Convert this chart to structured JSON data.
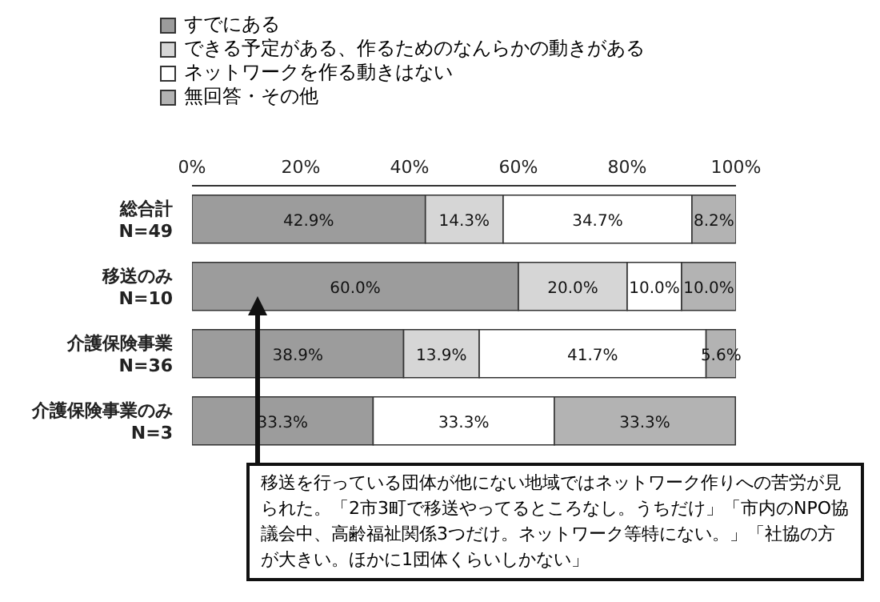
{
  "chart_data": {
    "type": "bar",
    "orientation": "horizontal",
    "stacked": true,
    "categories": [
      "総合計\nN=49",
      "移送のみ\nN=10",
      "介護保険事業\nN=36",
      "介護保険事業のみ\nN=3"
    ],
    "series": [
      {
        "name": "すでにある",
        "color": "#9c9c9c",
        "values": [
          42.9,
          60.0,
          38.9,
          33.3
        ],
        "value_labels": [
          "42.9%",
          "60.0%",
          "38.9%",
          "33.3%"
        ]
      },
      {
        "name": "できる予定がある、作るためのなんらかの動きがある",
        "color": "#d6d6d6",
        "values": [
          14.3,
          20.0,
          13.9,
          0
        ],
        "value_labels": [
          "14.3%",
          "20.0%",
          "13.9%",
          null
        ]
      },
      {
        "name": "ネットワークを作る動きはない",
        "color": "#ffffff",
        "values": [
          34.7,
          10.0,
          41.7,
          33.3
        ],
        "value_labels": [
          "34.7%",
          "10.0%",
          "41.7%",
          "33.3%"
        ]
      },
      {
        "name": "無回答・その他",
        "color": "#b3b3b3",
        "values": [
          8.2,
          10.0,
          5.6,
          33.3
        ],
        "value_labels": [
          "8.2%",
          "10.0%",
          "5.6%",
          "33.3%"
        ]
      }
    ],
    "xlim": [
      0,
      100
    ],
    "xticks": [
      {
        "value": 0,
        "label": "0%"
      },
      {
        "value": 20,
        "label": "20%"
      },
      {
        "value": 40,
        "label": "40%"
      },
      {
        "value": 60,
        "label": "60%"
      },
      {
        "value": 80,
        "label": "80%"
      },
      {
        "value": 100,
        "label": "100%"
      }
    ],
    "legend": "top left",
    "annotations": [
      {
        "text": "移送を行っている団体が他にない地域ではネットワーク作りへの苦労が見られた。「2市3町で移送やってるところなし。うちだけ」「市内のNPO協議会中、高齢福祉関係3つだけ。ネットワーク等特にない。」「社協の方が大きい。ほかに1団体くらいしかない」",
        "x": 12,
        "y": "移送のみ\nN=10"
      }
    ]
  }
}
